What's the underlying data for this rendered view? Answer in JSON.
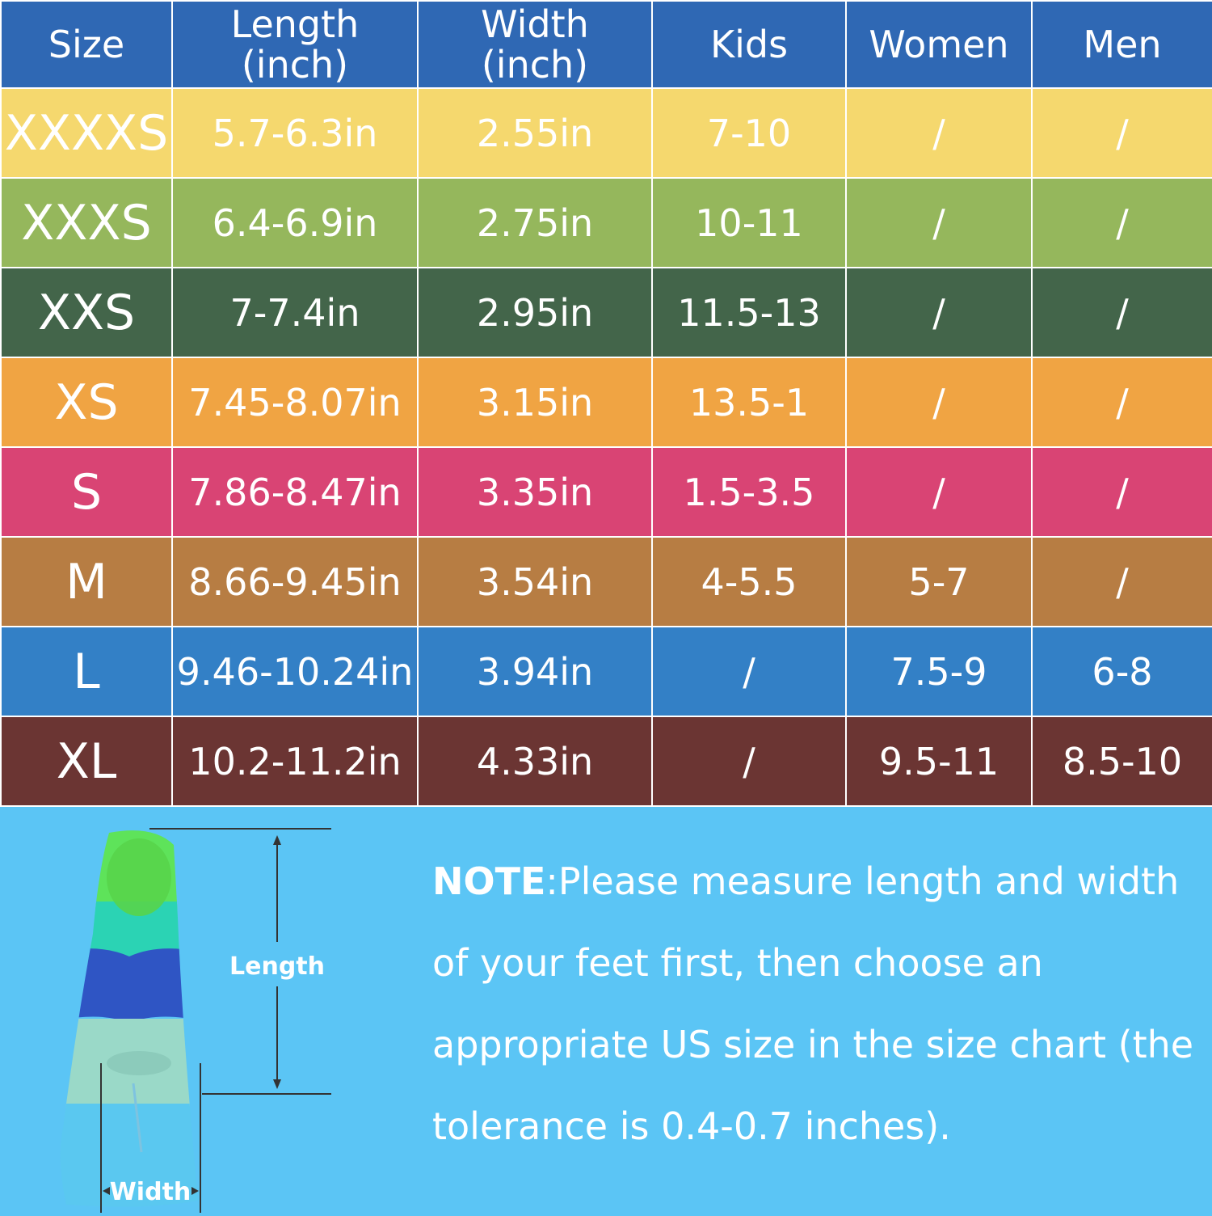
{
  "table": {
    "headers": [
      {
        "key": "size",
        "line1": "Size",
        "line2": ""
      },
      {
        "key": "length",
        "line1": "Length",
        "line2": "(inch)"
      },
      {
        "key": "width",
        "line1": "Width",
        "line2": "(inch)"
      },
      {
        "key": "kids",
        "line1": "Kids",
        "line2": ""
      },
      {
        "key": "women",
        "line1": "Women",
        "line2": ""
      },
      {
        "key": "men",
        "line1": "Men",
        "line2": ""
      }
    ],
    "header_color": "#2f68b4",
    "rows": [
      {
        "size": "XXXXS",
        "length": "5.7-6.3in",
        "width": "2.55in",
        "kids": "7-10",
        "women": "/",
        "men": "/",
        "color": "#f5d86e"
      },
      {
        "size": "XXXS",
        "length": "6.4-6.9in",
        "width": "2.75in",
        "kids": "10-11",
        "women": "/",
        "men": "/",
        "color": "#95b75c"
      },
      {
        "size": "XXS",
        "length": "7-7.4in",
        "width": "2.95in",
        "kids": "11.5-13",
        "women": "/",
        "men": "/",
        "color": "#43654a"
      },
      {
        "size": "XS",
        "length": "7.45-8.07in",
        "width": "3.15in",
        "kids": "13.5-1",
        "women": "/",
        "men": "/",
        "color": "#f0a443"
      },
      {
        "size": "S",
        "length": "7.86-8.47in",
        "width": "3.35in",
        "kids": "1.5-3.5",
        "women": "/",
        "men": "/",
        "color": "#d94474"
      },
      {
        "size": "M",
        "length": "8.66-9.45in",
        "width": "3.54in",
        "kids": "4-5.5",
        "women": "5-7",
        "men": "/",
        "color": "#b77d43"
      },
      {
        "size": "L",
        "length": "9.46-10.24in",
        "width": "3.94in",
        "kids": "/",
        "women": "7.5-9",
        "men": "6-8",
        "color": "#3380c6"
      },
      {
        "size": "XL",
        "length": "10.2-11.2in",
        "width": "4.33in",
        "kids": "/",
        "women": "9.5-11",
        "men": "8.5-10",
        "color": "#6b3533"
      }
    ]
  },
  "figure": {
    "length_label": "Length",
    "width_label": "Width",
    "fin_colors": [
      "#5ee35a",
      "#2bd3b4",
      "#2f55c4",
      "#9ad9c8",
      "#5ac8f0"
    ]
  },
  "note": {
    "label": "NOTE",
    "separator": ":",
    "text": "Please measure length and width of your feet first, then choose an appropriate US size in the size chart (the tolerance is 0.4-0.7 inches)."
  },
  "colors": {
    "page_background": "#5bc5f5",
    "text": "#ffffff"
  }
}
